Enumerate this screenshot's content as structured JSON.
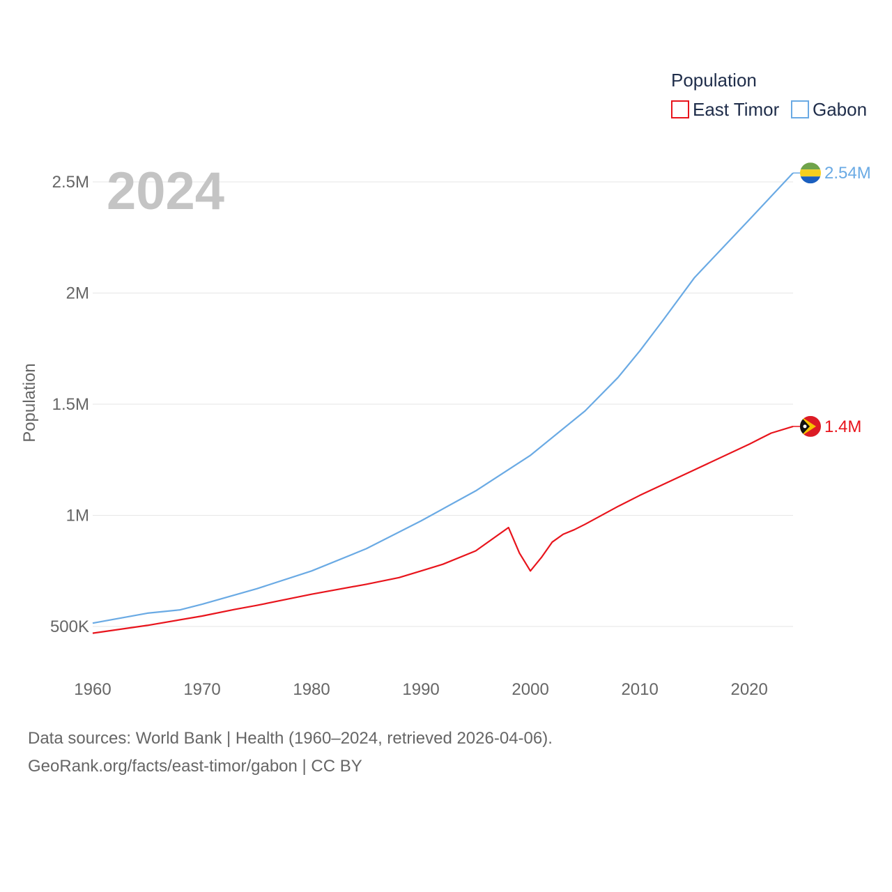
{
  "chart_data": {
    "type": "line",
    "title": "Population",
    "ylabel": "Population",
    "xlabel": "",
    "year_label": "2024",
    "xlim": [
      1960,
      2024
    ],
    "ylim": [
      460000,
      2580000
    ],
    "x_ticks": [
      1960,
      1970,
      1980,
      1990,
      2000,
      2010,
      2020
    ],
    "y_ticks": [
      {
        "value": 500000,
        "label": "500K"
      },
      {
        "value": 1000000,
        "label": "1M"
      },
      {
        "value": 1500000,
        "label": "1.5M"
      },
      {
        "value": 2000000,
        "label": "2M"
      },
      {
        "value": 2500000,
        "label": "2.5M"
      }
    ],
    "legend": {
      "title": "Population",
      "position": "top-right"
    },
    "series": [
      {
        "name": "East Timor",
        "color": "#e8141c",
        "end_label": "1.4M",
        "flag_icon": "east-timor-flag-icon",
        "points": [
          [
            1960,
            470000
          ],
          [
            1965,
            505000
          ],
          [
            1970,
            547000
          ],
          [
            1973,
            577000
          ],
          [
            1975,
            595000
          ],
          [
            1980,
            645000
          ],
          [
            1985,
            690000
          ],
          [
            1988,
            720000
          ],
          [
            1990,
            750000
          ],
          [
            1992,
            780000
          ],
          [
            1995,
            840000
          ],
          [
            1998,
            945000
          ],
          [
            1999,
            830000
          ],
          [
            2000,
            750000
          ],
          [
            2001,
            810000
          ],
          [
            2002,
            880000
          ],
          [
            2003,
            915000
          ],
          [
            2004,
            935000
          ],
          [
            2005,
            960000
          ],
          [
            2008,
            1040000
          ],
          [
            2010,
            1090000
          ],
          [
            2015,
            1205000
          ],
          [
            2020,
            1320000
          ],
          [
            2021,
            1345000
          ],
          [
            2022,
            1370000
          ],
          [
            2024,
            1400000
          ]
        ]
      },
      {
        "name": "Gabon",
        "color": "#6aaae4",
        "end_label": "2.54M",
        "flag_icon": "gabon-flag-icon",
        "points": [
          [
            1960,
            515000
          ],
          [
            1965,
            560000
          ],
          [
            1968,
            575000
          ],
          [
            1970,
            600000
          ],
          [
            1975,
            670000
          ],
          [
            1980,
            750000
          ],
          [
            1985,
            850000
          ],
          [
            1990,
            975000
          ],
          [
            1995,
            1110000
          ],
          [
            2000,
            1270000
          ],
          [
            2005,
            1470000
          ],
          [
            2008,
            1620000
          ],
          [
            2010,
            1740000
          ],
          [
            2012,
            1870000
          ],
          [
            2015,
            2070000
          ],
          [
            2020,
            2330000
          ],
          [
            2024,
            2540000
          ]
        ]
      }
    ]
  },
  "footer": {
    "sources_line": "Data sources: World Bank | Health (1960–2024, retrieved 2026-04-06).",
    "credit_line": "GeoRank.org/facts/east-timor/gabon | CC BY"
  }
}
